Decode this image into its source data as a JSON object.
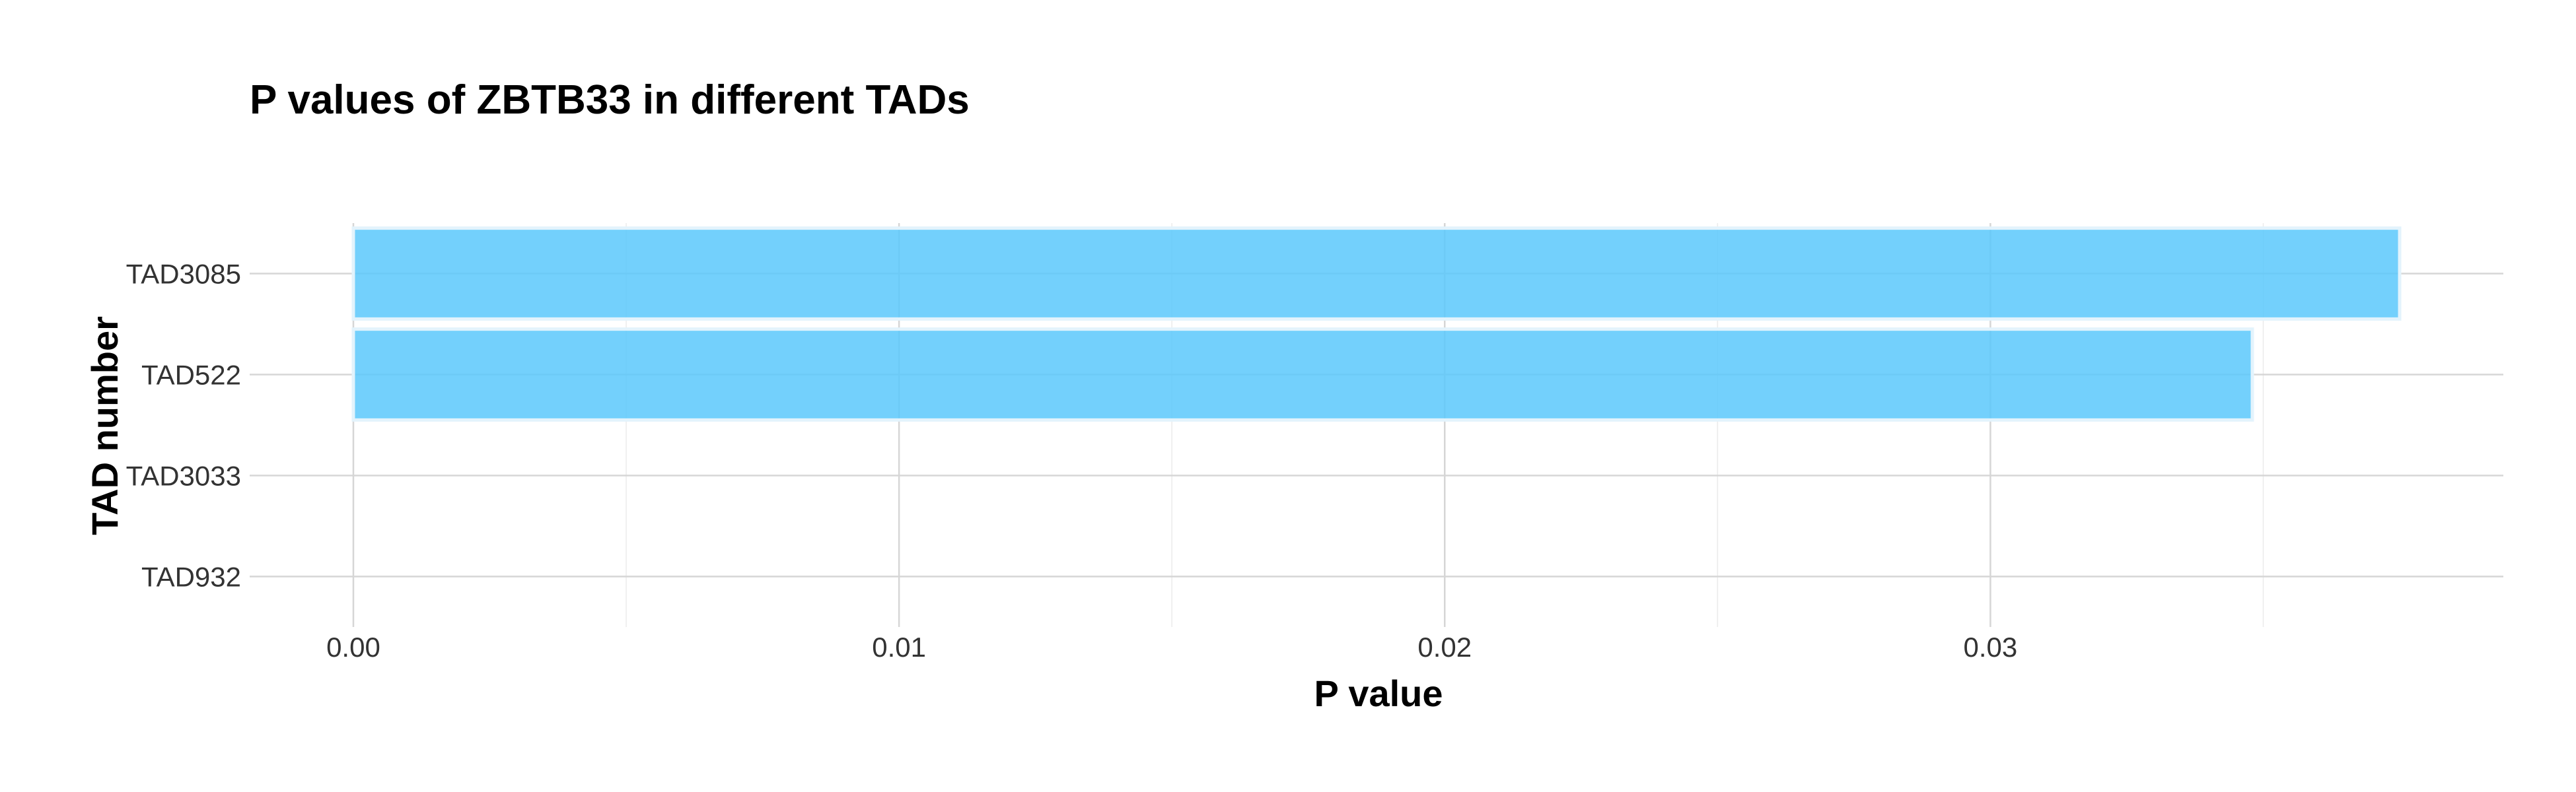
{
  "chart_data": {
    "type": "bar",
    "orientation": "horizontal",
    "title": "P values of ZBTB33 in different TADs",
    "xlabel": "P value",
    "ylabel": "TAD number",
    "categories": [
      "TAD3085",
      "TAD522",
      "TAD3033",
      "TAD932"
    ],
    "values": [
      0.0375,
      0.0348,
      0,
      0
    ],
    "x_ticks": [
      0,
      0.01,
      0.02,
      0.03
    ],
    "x_tick_labels": [
      "0.00",
      "0.01",
      "0.02",
      "0.03"
    ],
    "xlim": [
      -0.0019,
      0.0394
    ],
    "grid": true,
    "legend": "none",
    "bar_color": "#5bc8fb"
  }
}
